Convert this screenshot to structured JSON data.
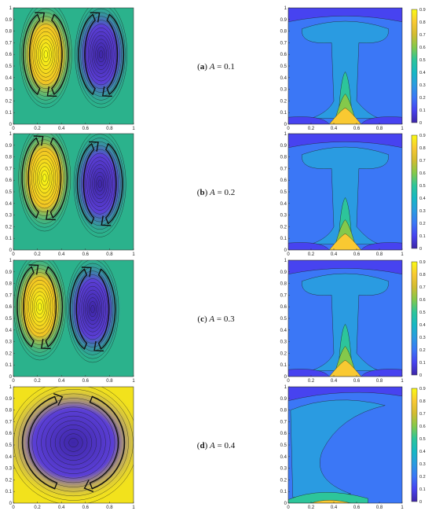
{
  "chart_data": [
    {
      "type": "heatmap",
      "title": "",
      "caption": {
        "letter": "a",
        "variable": "A",
        "operator": "=",
        "value": "0.1"
      },
      "stream": {
        "type": "heatmap",
        "xlim": [
          0,
          1
        ],
        "ylim": [
          0,
          1
        ],
        "x_ticks": [
          "0",
          "0.2",
          "0.4",
          "0.6",
          "0.8",
          "1"
        ],
        "y_ticks": [
          "0",
          "0.1",
          "0.2",
          "0.3",
          "0.4",
          "0.5",
          "0.6",
          "0.7",
          "0.8",
          "0.9",
          "1"
        ],
        "vortices": [
          {
            "sense": "clockwise",
            "cx": 0.27,
            "cy": 0.6,
            "color": "#f2c424"
          },
          {
            "sense": "clockwise",
            "cx": 0.73,
            "cy": 0.6,
            "color": "#5b3fd6"
          }
        ],
        "background": "#2bb28c"
      },
      "isotherm": {
        "type": "heatmap",
        "xlim": [
          0,
          1
        ],
        "ylim": [
          0,
          1
        ],
        "x_ticks": [
          "0",
          "0.2",
          "0.4",
          "0.6",
          "0.8",
          "1"
        ],
        "y_ticks": [
          "0",
          "0.1",
          "0.2",
          "0.3",
          "0.4",
          "0.5",
          "0.6",
          "0.7",
          "0.8",
          "0.9",
          "1"
        ],
        "colorbar_ticks": [
          "0",
          "0.1",
          "0.2",
          "0.3",
          "0.4",
          "0.5",
          "0.6",
          "0.7",
          "0.8",
          "0.9"
        ],
        "colorbar_range": [
          0,
          0.9
        ]
      }
    },
    {
      "type": "heatmap",
      "title": "",
      "caption": {
        "letter": "b",
        "variable": "A",
        "operator": "=",
        "value": "0.2"
      },
      "stream": {
        "type": "heatmap",
        "xlim": [
          0,
          1
        ],
        "ylim": [
          0,
          1
        ],
        "x_ticks": [
          "0",
          "0.2",
          "0.4",
          "0.6",
          "0.8",
          "1"
        ],
        "y_ticks": [
          "0",
          "0.1",
          "0.2",
          "0.3",
          "0.4",
          "0.5",
          "0.6",
          "0.7",
          "0.8",
          "0.9",
          "1"
        ],
        "vortices": [
          {
            "sense": "clockwise",
            "cx": 0.26,
            "cy": 0.62,
            "color": "#f2c424"
          },
          {
            "sense": "clockwise",
            "cx": 0.72,
            "cy": 0.57,
            "color": "#5b3fd6"
          }
        ],
        "background": "#2bb28c"
      },
      "isotherm": {
        "type": "heatmap",
        "xlim": [
          0,
          1
        ],
        "ylim": [
          0,
          1
        ],
        "x_ticks": [
          "0",
          "0.2",
          "0.4",
          "0.6",
          "0.8",
          "1"
        ],
        "y_ticks": [
          "0",
          "0.1",
          "0.2",
          "0.3",
          "0.4",
          "0.5",
          "0.6",
          "0.7",
          "0.8",
          "0.9",
          "1"
        ],
        "colorbar_ticks": [
          "0",
          "0.1",
          "0.2",
          "0.3",
          "0.4",
          "0.5",
          "0.6",
          "0.7",
          "0.8",
          "0.9"
        ],
        "colorbar_range": [
          0,
          0.9
        ]
      }
    },
    {
      "type": "heatmap",
      "title": "",
      "caption": {
        "letter": "c",
        "variable": "A",
        "operator": "=",
        "value": "0.3"
      },
      "stream": {
        "type": "heatmap",
        "xlim": [
          0,
          1
        ],
        "ylim": [
          0,
          1
        ],
        "x_ticks": [
          "0",
          "0.2",
          "0.4",
          "0.6",
          "0.8",
          "1"
        ],
        "y_ticks": [
          "0",
          "0.1",
          "0.2",
          "0.3",
          "0.4",
          "0.5",
          "0.6",
          "0.7",
          "0.8",
          "0.9",
          "1"
        ],
        "vortices": [
          {
            "sense": "clockwise",
            "cx": 0.22,
            "cy": 0.6,
            "color": "#f2c424"
          },
          {
            "sense": "clockwise",
            "cx": 0.66,
            "cy": 0.58,
            "color": "#5b3fd6"
          }
        ],
        "background": "#2bb28c"
      },
      "isotherm": {
        "type": "heatmap",
        "xlim": [
          0,
          1
        ],
        "ylim": [
          0,
          1
        ],
        "x_ticks": [
          "0",
          "0.2",
          "0.4",
          "0.6",
          "0.8",
          "1"
        ],
        "y_ticks": [
          "0",
          "0.1",
          "0.2",
          "0.3",
          "0.4",
          "0.5",
          "0.6",
          "0.7",
          "0.8",
          "0.9",
          "1"
        ],
        "colorbar_ticks": [
          "0",
          "0.1",
          "0.2",
          "0.3",
          "0.4",
          "0.5",
          "0.6",
          "0.7",
          "0.8",
          "0.9"
        ],
        "colorbar_range": [
          0,
          0.9
        ]
      }
    },
    {
      "type": "heatmap",
      "title": "",
      "caption": {
        "letter": "d",
        "variable": "A",
        "operator": "=",
        "value": "0.4"
      },
      "stream": {
        "type": "heatmap",
        "xlim": [
          0,
          1
        ],
        "ylim": [
          0,
          1
        ],
        "x_ticks": [
          "0",
          "0.2",
          "0.4",
          "0.6",
          "0.8",
          "1"
        ],
        "y_ticks": [
          "0",
          "0.1",
          "0.2",
          "0.3",
          "0.4",
          "0.5",
          "0.6",
          "0.7",
          "0.8",
          "0.9",
          "1"
        ],
        "vortices": [
          {
            "sense": "clockwise",
            "cx": 0.5,
            "cy": 0.52,
            "color": "#5b3fd6"
          }
        ],
        "background": "#f2e21c"
      },
      "isotherm": {
        "type": "heatmap",
        "xlim": [
          0,
          1
        ],
        "ylim": [
          0,
          1
        ],
        "x_ticks": [
          "0",
          "0.2",
          "0.4",
          "0.6",
          "0.8",
          "1"
        ],
        "y_ticks": [
          "0",
          "0.1",
          "0.2",
          "0.3",
          "0.4",
          "0.5",
          "0.6",
          "0.7",
          "0.8",
          "0.9",
          "1"
        ],
        "colorbar_ticks": [
          "0",
          "0.1",
          "0.2",
          "0.3",
          "0.4",
          "0.5",
          "0.6",
          "0.7",
          "0.8",
          "0.9"
        ],
        "colorbar_range": [
          0,
          0.9
        ]
      }
    }
  ],
  "colors": {
    "colormap": [
      "#3e26a8",
      "#4743f0",
      "#3b77f6",
      "#2a9be1",
      "#16b8c4",
      "#2dc59a",
      "#84c94b",
      "#d2bc31",
      "#f9c932",
      "#f9fa14"
    ]
  }
}
